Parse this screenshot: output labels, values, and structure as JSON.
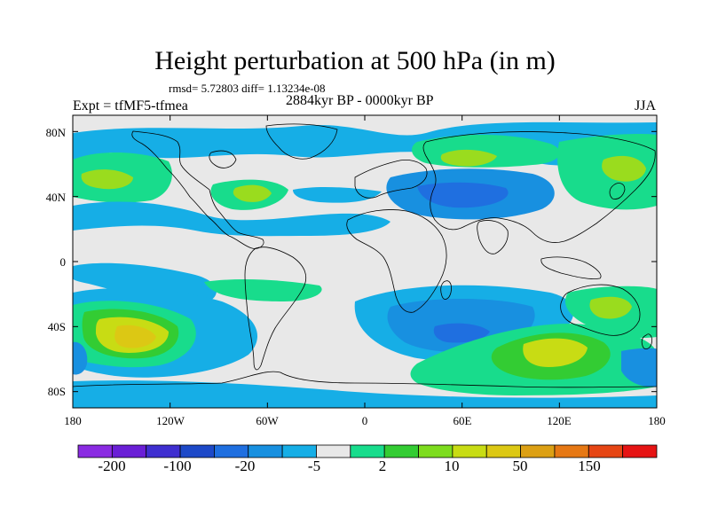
{
  "title": "Height perturbation at 500 hPa (in m)",
  "stats": "rmsd= 5.72803 diff= 1.13234e-08",
  "experiment": "Expt = tfMF5-tfmea",
  "period": "2884kyr BP - 0000kyr BP",
  "season": "JJA",
  "axes": {
    "lon_ticks": [
      "180",
      "120W",
      "60W",
      "0",
      "60E",
      "120E",
      "180"
    ],
    "lat_ticks": [
      "80N",
      "40N",
      "0",
      "40S",
      "80S"
    ]
  },
  "colorbar": {
    "colors": [
      "#8a2be2",
      "#6a1fd6",
      "#3f2fd0",
      "#1d49c8",
      "#1f6fe0",
      "#1890e0",
      "#16aee6",
      "#e8e8e8",
      "#18dc8c",
      "#33cc33",
      "#7ddc1e",
      "#c8dc14",
      "#dcc814",
      "#dca014",
      "#e67814",
      "#e64614",
      "#e61414"
    ],
    "labels": [
      "-200",
      "-100",
      "-20",
      "-5",
      "2",
      "10",
      "50",
      "150"
    ]
  },
  "field_colors": {
    "neutral": "#e8e8e8",
    "neg1": "#16aee6",
    "neg2": "#1890e0",
    "neg3": "#1f6fe0",
    "pos1": "#18dc8c",
    "pos2": "#33cc33",
    "pos3": "#9adc1e",
    "pos4": "#c8dc14",
    "pos5": "#dcc814"
  }
}
